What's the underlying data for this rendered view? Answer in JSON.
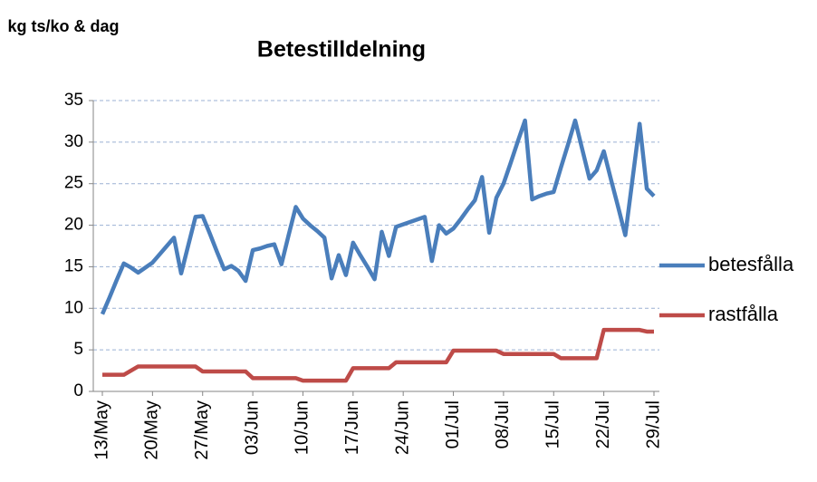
{
  "chart_data": {
    "type": "line",
    "title": "Betestilldelning",
    "ylabel": "kg ts/ko & dag",
    "categories": [
      "13/May",
      null,
      null,
      null,
      null,
      null,
      null,
      "20/May",
      null,
      null,
      null,
      null,
      null,
      null,
      "27/May",
      null,
      null,
      null,
      null,
      null,
      null,
      "03/Jun",
      null,
      null,
      null,
      null,
      null,
      null,
      "10/Jun",
      null,
      null,
      null,
      null,
      null,
      null,
      "17/Jun",
      null,
      null,
      null,
      null,
      null,
      null,
      "24/Jun",
      null,
      null,
      null,
      null,
      null,
      null,
      "01/Jul",
      null,
      null,
      null,
      null,
      null,
      null,
      "08/Jul",
      null,
      null,
      null,
      null,
      null,
      null,
      "15/Jul",
      null,
      null,
      null,
      null,
      null,
      null,
      "22/Jul",
      null,
      null,
      null,
      null,
      null,
      null,
      "29/Jul"
    ],
    "series": [
      {
        "name": "betesfålla",
        "color": "#4a7ebb",
        "values": [
          9.3,
          11.3,
          13.4,
          15.4,
          14.9,
          14.3,
          14.9,
          15.5,
          16.5,
          17.5,
          18.5,
          14.2,
          17.6,
          21.0,
          21.1,
          19.0,
          16.8,
          14.7,
          15.1,
          14.5,
          13.3,
          17.0,
          17.2,
          17.5,
          17.7,
          15.3,
          18.8,
          22.2,
          20.8,
          20.0,
          19.3,
          18.5,
          13.6,
          16.4,
          14.0,
          17.9,
          16.4,
          15.0,
          13.5,
          19.2,
          16.3,
          19.8,
          20.1,
          20.4,
          20.7,
          21.0,
          15.7,
          20.0,
          19.0,
          19.6,
          20.7,
          21.9,
          23.0,
          25.8,
          19.1,
          23.3,
          25.0,
          27.5,
          30.1,
          32.6,
          23.1,
          23.5,
          23.8,
          24.0,
          26.9,
          29.7,
          32.6,
          29.1,
          25.6,
          26.6,
          28.9,
          25.5,
          22.2,
          18.8,
          25.5,
          32.2,
          24.4,
          23.5
        ]
      },
      {
        "name": "rastfålla",
        "color": "#be4b48",
        "values": [
          2.0,
          2.0,
          2.0,
          2.0,
          2.5,
          3.0,
          3.0,
          3.0,
          3.0,
          3.0,
          3.0,
          3.0,
          3.0,
          3.0,
          2.4,
          2.4,
          2.4,
          2.4,
          2.4,
          2.4,
          2.4,
          1.6,
          1.6,
          1.6,
          1.6,
          1.6,
          1.6,
          1.6,
          1.3,
          1.3,
          1.3,
          1.3,
          1.3,
          1.3,
          1.3,
          2.8,
          2.8,
          2.8,
          2.8,
          2.8,
          2.8,
          3.5,
          3.5,
          3.5,
          3.5,
          3.5,
          3.5,
          3.5,
          3.5,
          4.9,
          4.9,
          4.9,
          4.9,
          4.9,
          4.9,
          4.9,
          4.5,
          4.5,
          4.5,
          4.5,
          4.5,
          4.5,
          4.5,
          4.5,
          4.0,
          4.0,
          4.0,
          4.0,
          4.0,
          4.0,
          7.4,
          7.4,
          7.4,
          7.4,
          7.4,
          7.4,
          7.2,
          7.2
        ]
      }
    ],
    "ylim": [
      0,
      35
    ],
    "yticks": [
      0,
      5,
      10,
      15,
      20,
      25,
      30,
      35
    ],
    "grid": true,
    "legend": "right"
  }
}
